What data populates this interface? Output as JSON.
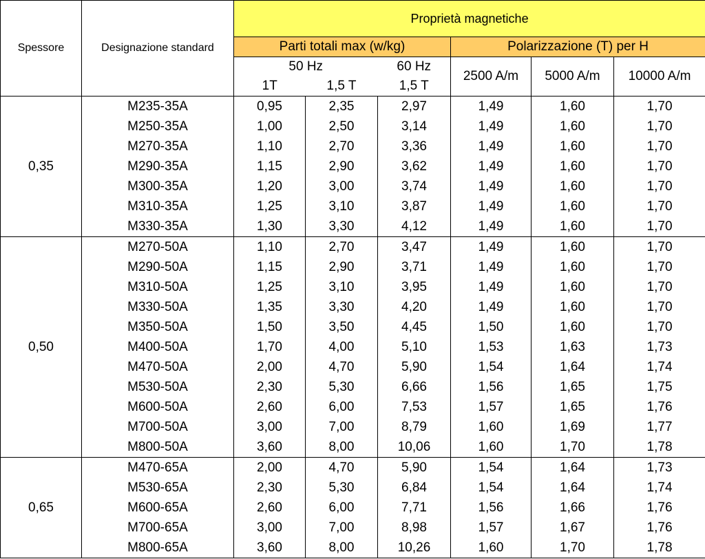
{
  "header": {
    "spessore": "Spessore",
    "designazione": "Designazione standard",
    "proprieta": "Proprietà magnetiche",
    "perdite": "Parti totali max (w/kg)",
    "polarizzazione": "Polarizzazione (T) per H",
    "hz50": "50 Hz",
    "hz60": "60 Hz",
    "t1": "1T",
    "t15a": "1,5 T",
    "t15b": "1,5 T",
    "h2500": "2500 A/m",
    "h5000": "5000 A/m",
    "h10000": "10000 A/m"
  },
  "groups": [
    {
      "thickness": "0,35",
      "rows": [
        [
          "M235-35A",
          "0,95",
          "2,35",
          "2,97",
          "1,49",
          "1,60",
          "1,70"
        ],
        [
          "M250-35A",
          "1,00",
          "2,50",
          "3,14",
          "1,49",
          "1,60",
          "1,70"
        ],
        [
          "M270-35A",
          "1,10",
          "2,70",
          "3,36",
          "1,49",
          "1,60",
          "1,70"
        ],
        [
          "M290-35A",
          "1,15",
          "2,90",
          "3,62",
          "1,49",
          "1,60",
          "1,70"
        ],
        [
          "M300-35A",
          "1,20",
          "3,00",
          "3,74",
          "1,49",
          "1,60",
          "1,70"
        ],
        [
          "M310-35A",
          "1,25",
          "3,10",
          "3,87",
          "1,49",
          "1,60",
          "1,70"
        ],
        [
          "M330-35A",
          "1,30",
          "3,30",
          "4,12",
          "1,49",
          "1,60",
          "1,70"
        ]
      ]
    },
    {
      "thickness": "0,50",
      "rows": [
        [
          "M270-50A",
          "1,10",
          "2,70",
          "3,47",
          "1,49",
          "1,60",
          "1,70"
        ],
        [
          "M290-50A",
          "1,15",
          "2,90",
          "3,71",
          "1,49",
          "1,60",
          "1,70"
        ],
        [
          "M310-50A",
          "1,25",
          "3,10",
          "3,95",
          "1,49",
          "1,60",
          "1,70"
        ],
        [
          "M330-50A",
          "1,35",
          "3,30",
          "4,20",
          "1,49",
          "1,60",
          "1,70"
        ],
        [
          "M350-50A",
          "1,50",
          "3,50",
          "4,45",
          "1,50",
          "1,60",
          "1,70"
        ],
        [
          "M400-50A",
          "1,70",
          "4,00",
          "5,10",
          "1,53",
          "1,63",
          "1,73"
        ],
        [
          "M470-50A",
          "2,00",
          "4,70",
          "5,90",
          "1,54",
          "1,64",
          "1,74"
        ],
        [
          "M530-50A",
          "2,30",
          "5,30",
          "6,66",
          "1,56",
          "1,65",
          "1,75"
        ],
        [
          "M600-50A",
          "2,60",
          "6,00",
          "7,53",
          "1,57",
          "1,65",
          "1,76"
        ],
        [
          "M700-50A",
          "3,00",
          "7,00",
          "8,79",
          "1,60",
          "1,69",
          "1,77"
        ],
        [
          "M800-50A",
          "3,60",
          "8,00",
          "10,06",
          "1,60",
          "1,70",
          "1,78"
        ]
      ]
    },
    {
      "thickness": "0,65",
      "rows": [
        [
          "M470-65A",
          "2,00",
          "4,70",
          "5,90",
          "1,54",
          "1,64",
          "1,73"
        ],
        [
          "M530-65A",
          "2,30",
          "5,30",
          "6,84",
          "1,54",
          "1,64",
          "1,74"
        ],
        [
          "M600-65A",
          "2,60",
          "6,00",
          "7,71",
          "1,56",
          "1,66",
          "1,76"
        ],
        [
          "M700-65A",
          "3,00",
          "7,00",
          "8,98",
          "1,57",
          "1,67",
          "1,76"
        ],
        [
          "M800-65A",
          "3,60",
          "8,00",
          "10,26",
          "1,60",
          "1,70",
          "1,78"
        ]
      ]
    }
  ]
}
